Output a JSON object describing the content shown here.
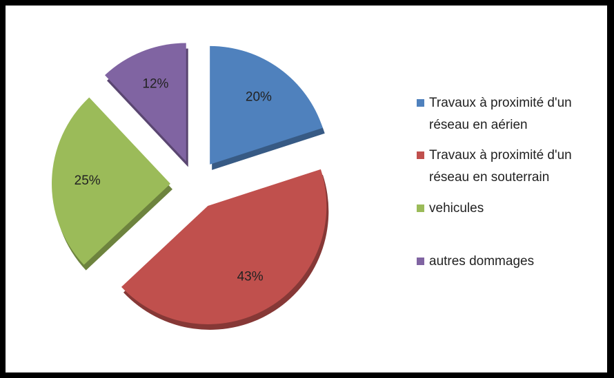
{
  "chart_data": {
    "type": "pie",
    "categories": [
      "Travaux à proximité d'un réseau en aérien",
      "Travaux à proximité d'un réseau en souterrain",
      "vehicules",
      "autres dommages"
    ],
    "values": [
      20,
      43,
      25,
      12
    ],
    "value_labels": [
      "20%",
      "43%",
      "25%",
      "12%"
    ],
    "colors": [
      "#4f81bd",
      "#c0504d",
      "#9bbb59",
      "#8064a2"
    ],
    "legend": "right"
  }
}
